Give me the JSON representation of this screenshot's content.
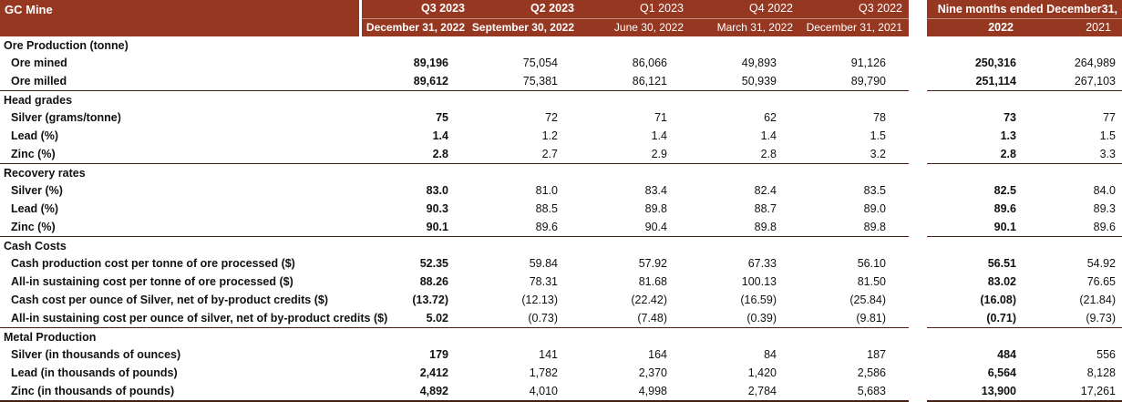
{
  "colors": {
    "header_background": "#963821",
    "header_text": "#ffffff",
    "section_divider": "#45200f",
    "body_text": "#111111"
  },
  "header": {
    "title": "GC Mine",
    "quarters": [
      {
        "label": "Q3 2023",
        "date": "December 31, 2022",
        "bold": true
      },
      {
        "label": "Q2 2023",
        "date": "September 30, 2022",
        "bold": true
      },
      {
        "label": "Q1 2023",
        "date": "June 30, 2022",
        "bold": false
      },
      {
        "label": "Q4 2022",
        "date": "March 31, 2022",
        "bold": false
      },
      {
        "label": "Q3 2022",
        "date": "December 31, 2021",
        "bold": false
      }
    ],
    "nine_months": {
      "label": "Nine months ended December31,",
      "years": [
        "2022",
        "2021"
      ]
    }
  },
  "sections": [
    {
      "title": "Ore Production (tonne)",
      "rows": [
        {
          "label": "Ore mined",
          "values": [
            "89,196",
            "75,054",
            "86,066",
            "49,893",
            "91,126",
            "250,316",
            "264,989"
          ]
        },
        {
          "label": "Ore milled",
          "values": [
            "89,612",
            "75,381",
            "86,121",
            "50,939",
            "89,790",
            "251,114",
            "267,103"
          ]
        }
      ]
    },
    {
      "title": "Head grades",
      "rows": [
        {
          "label": "Silver (grams/tonne)",
          "values": [
            "75",
            "72",
            "71",
            "62",
            "78",
            "73",
            "77"
          ]
        },
        {
          "label": "Lead (%)",
          "values": [
            "1.4",
            "1.2",
            "1.4",
            "1.4",
            "1.5",
            "1.3",
            "1.5"
          ]
        },
        {
          "label": "Zinc (%)",
          "values": [
            "2.8",
            "2.7",
            "2.9",
            "2.8",
            "3.2",
            "2.8",
            "3.3"
          ]
        }
      ]
    },
    {
      "title": "Recovery rates",
      "rows": [
        {
          "label": "Silver (%)",
          "values": [
            "83.0",
            "81.0",
            "83.4",
            "82.4",
            "83.5",
            "82.5",
            "84.0"
          ]
        },
        {
          "label": "Lead (%)",
          "values": [
            "90.3",
            "88.5",
            "89.8",
            "88.7",
            "89.0",
            "89.6",
            "89.3"
          ]
        },
        {
          "label": "Zinc (%)",
          "values": [
            "90.1",
            "89.6",
            "90.4",
            "89.8",
            "89.8",
            "90.1",
            "89.6"
          ]
        }
      ]
    },
    {
      "title": "Cash Costs",
      "rows": [
        {
          "label": "Cash production cost per tonne of ore processed ($)",
          "values": [
            "52.35",
            "59.84",
            "57.92",
            "67.33",
            "56.10",
            "56.51",
            "54.92"
          ]
        },
        {
          "label": "All-in sustaining cost per tonne of ore processed ($)",
          "values": [
            "88.26",
            "78.31",
            "81.68",
            "100.13",
            "81.50",
            "83.02",
            "76.65"
          ]
        },
        {
          "label": "Cash cost per ounce of Silver, net of by-product credits ($)",
          "values": [
            "(13.72)",
            "(12.13)",
            "(22.42)",
            "(16.59)",
            "(25.84)",
            "(16.08)",
            "(21.84)"
          ]
        },
        {
          "label": "All-in sustaining cost per ounce of silver, net of by-product credits ($)",
          "values": [
            "5.02",
            "(0.73)",
            "(7.48)",
            "(0.39)",
            "(9.81)",
            "(0.71)",
            "(9.73)"
          ]
        }
      ]
    },
    {
      "title": "Metal Production",
      "rows": [
        {
          "label": "Silver (in thousands of ounces)",
          "values": [
            "179",
            "141",
            "164",
            "84",
            "187",
            "484",
            "556"
          ]
        },
        {
          "label": "Lead (in thousands of pounds)",
          "values": [
            "2,412",
            "1,782",
            "2,370",
            "1,420",
            "2,586",
            "6,564",
            "8,128"
          ]
        },
        {
          "label": "Zinc (in thousands of pounds)",
          "values": [
            "4,892",
            "4,010",
            "4,998",
            "2,784",
            "5,683",
            "13,900",
            "17,261"
          ]
        }
      ]
    }
  ]
}
